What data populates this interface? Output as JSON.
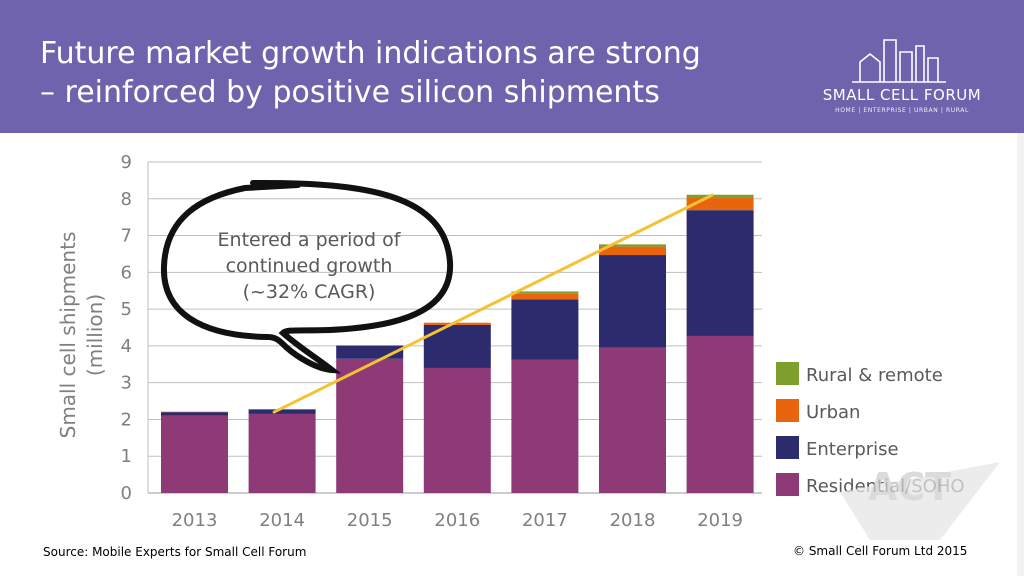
{
  "header": {
    "title_line1": "Future market growth indications are strong",
    "title_line2": "– reinforced by positive silicon shipments",
    "logo_name": "SMALL CELL FORUM",
    "logo_tagline": "HOME | ENTERPRISE | URBAN | RURAL"
  },
  "chart_data": {
    "type": "bar",
    "stacked": true,
    "categories": [
      "2013",
      "2014",
      "2015",
      "2016",
      "2017",
      "2018",
      "2019"
    ],
    "series": [
      {
        "name": "Residential/SOHO",
        "color": "#8e3a76",
        "values": [
          2.1,
          2.15,
          3.65,
          3.4,
          3.62,
          3.95,
          4.27
        ]
      },
      {
        "name": "Enterprise",
        "color": "#2b2b6e",
        "values": [
          0.1,
          0.12,
          0.35,
          1.17,
          1.64,
          2.52,
          3.42
        ]
      },
      {
        "name": "Urban",
        "color": "#e8650e",
        "values": [
          0.01,
          0.01,
          0.02,
          0.06,
          0.16,
          0.23,
          0.33
        ]
      },
      {
        "name": "Rural & remote",
        "color": "#7e9e2e",
        "values": [
          0.0,
          0.0,
          0.0,
          0.0,
          0.06,
          0.06,
          0.09
        ]
      }
    ],
    "ylabel_line1": "Small cell shipments",
    "ylabel_line2": "(million)",
    "ylim": [
      0,
      9
    ],
    "yticks": [
      0,
      1,
      2,
      3,
      4,
      5,
      6,
      7,
      8,
      9
    ],
    "grid": true,
    "legend_position": "right",
    "trend_line": {
      "color": "#f5c234",
      "from": {
        "x": "2014",
        "y": 2.2
      },
      "to": {
        "x": "2019",
        "y": 8.1
      }
    },
    "annotation": {
      "lines": [
        "Entered a period of",
        "continued growth",
        "(~32% CAGR)"
      ]
    }
  },
  "watermark": "ACT",
  "footer": {
    "source": "Source: Mobile Experts for Small Cell Forum",
    "copyright": "© Small Cell Forum Ltd 2015"
  }
}
